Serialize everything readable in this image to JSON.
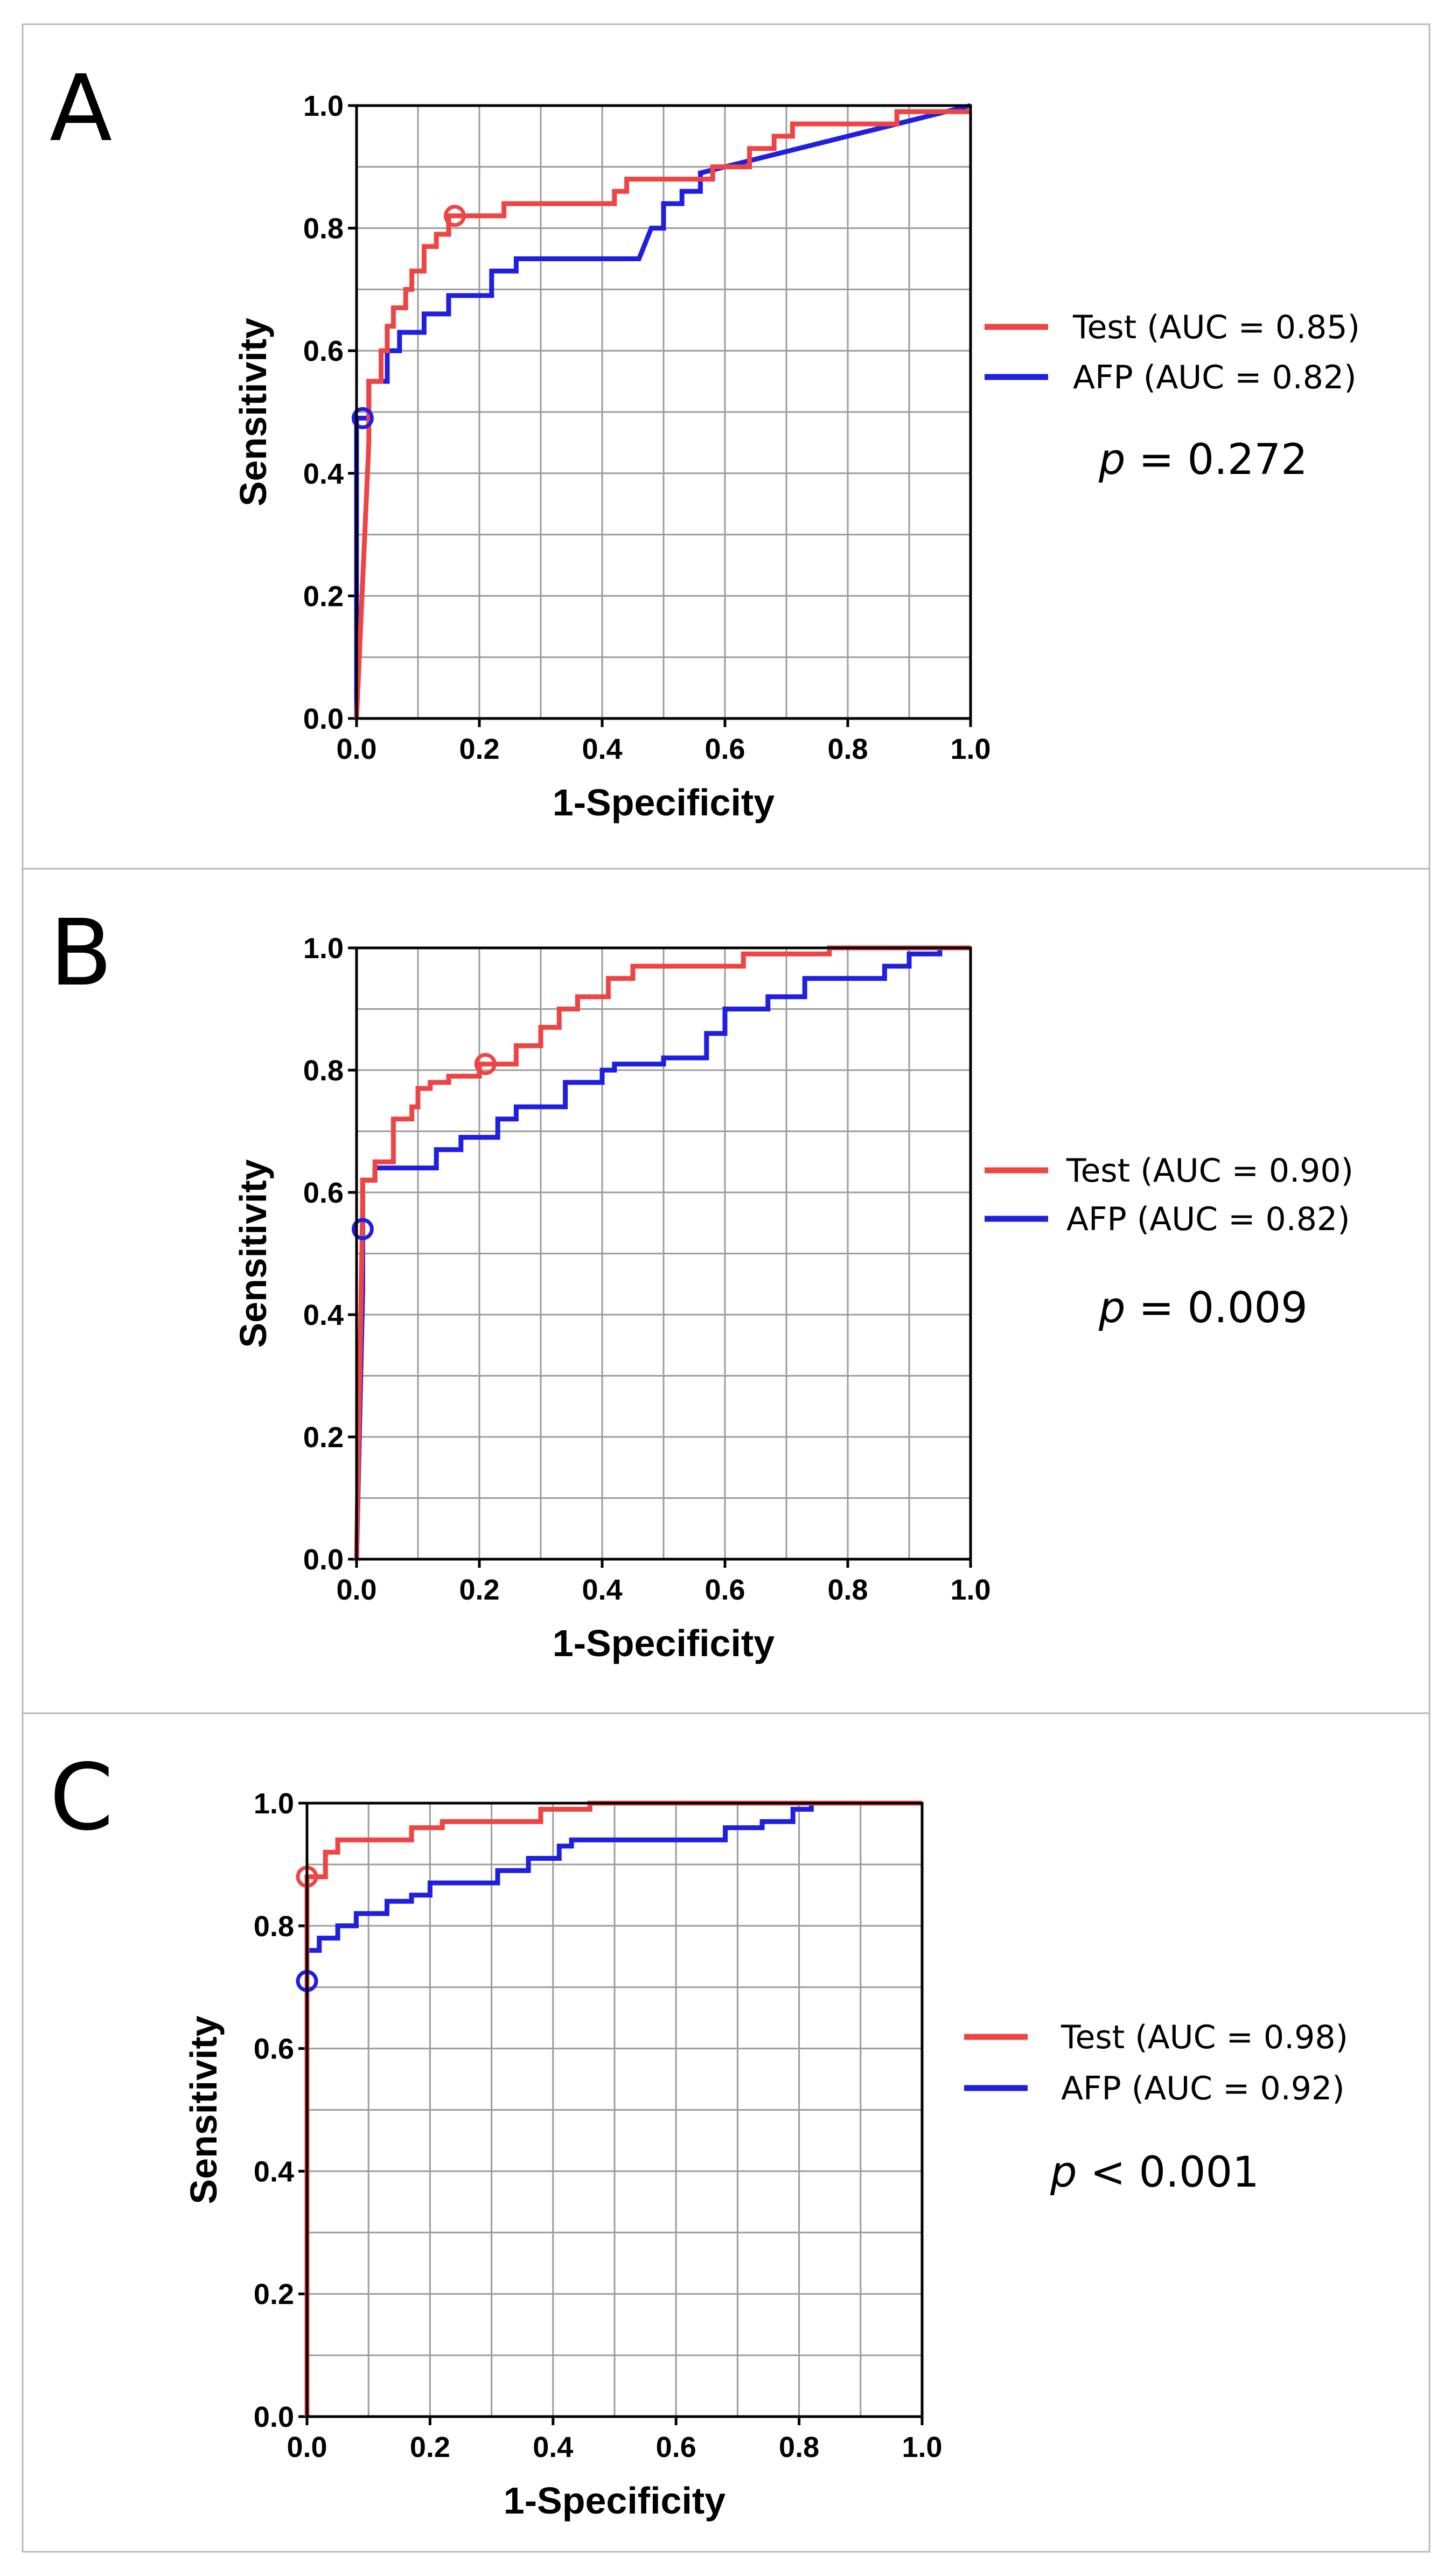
{
  "chart_data": [
    {
      "type": "line",
      "panel_label": "A",
      "xlabel": "1-Specificity",
      "ylabel": "Sensitivity",
      "xlim": [
        0,
        1
      ],
      "ylim": [
        0,
        1
      ],
      "x_ticks": [
        "0.0",
        "0.2",
        "0.4",
        "0.6",
        "0.8",
        "1.0"
      ],
      "y_ticks": [
        "0.0",
        "0.2",
        "0.4",
        "0.6",
        "0.8",
        "1.0"
      ],
      "grid": true,
      "legend_position": "right",
      "p_prefix": "p",
      "p_rest": " = 0.272",
      "series": [
        {
          "name": "Test",
          "legend_label": "Test (AUC = 0.85)",
          "color": "#ee4444",
          "cutoff": [
            0.16,
            0.82
          ],
          "points": [
            [
              0,
              0
            ],
            [
              0.02,
              0.45
            ],
            [
              0.02,
              0.55
            ],
            [
              0.04,
              0.55
            ],
            [
              0.04,
              0.6
            ],
            [
              0.05,
              0.6
            ],
            [
              0.05,
              0.64
            ],
            [
              0.06,
              0.64
            ],
            [
              0.06,
              0.67
            ],
            [
              0.08,
              0.67
            ],
            [
              0.08,
              0.7
            ],
            [
              0.09,
              0.7
            ],
            [
              0.09,
              0.73
            ],
            [
              0.11,
              0.73
            ],
            [
              0.11,
              0.77
            ],
            [
              0.13,
              0.77
            ],
            [
              0.13,
              0.79
            ],
            [
              0.15,
              0.79
            ],
            [
              0.15,
              0.82
            ],
            [
              0.24,
              0.82
            ],
            [
              0.24,
              0.84
            ],
            [
              0.42,
              0.84
            ],
            [
              0.42,
              0.86
            ],
            [
              0.44,
              0.86
            ],
            [
              0.44,
              0.88
            ],
            [
              0.58,
              0.88
            ],
            [
              0.58,
              0.9
            ],
            [
              0.64,
              0.9
            ],
            [
              0.64,
              0.93
            ],
            [
              0.68,
              0.93
            ],
            [
              0.68,
              0.95
            ],
            [
              0.71,
              0.95
            ],
            [
              0.71,
              0.97
            ],
            [
              0.88,
              0.97
            ],
            [
              0.88,
              0.99
            ],
            [
              1,
              0.99
            ]
          ]
        },
        {
          "name": "AFP",
          "legend_label": "AFP (AUC = 0.82)",
          "color": "#1f1fe0",
          "cutoff": [
            0.01,
            0.49
          ],
          "points": [
            [
              0,
              0
            ],
            [
              0,
              0.49
            ],
            [
              0.02,
              0.49
            ],
            [
              0.02,
              0.55
            ],
            [
              0.05,
              0.55
            ],
            [
              0.05,
              0.6
            ],
            [
              0.07,
              0.6
            ],
            [
              0.07,
              0.63
            ],
            [
              0.11,
              0.63
            ],
            [
              0.11,
              0.66
            ],
            [
              0.15,
              0.66
            ],
            [
              0.15,
              0.69
            ],
            [
              0.22,
              0.69
            ],
            [
              0.22,
              0.73
            ],
            [
              0.26,
              0.73
            ],
            [
              0.26,
              0.75
            ],
            [
              0.46,
              0.75
            ],
            [
              0.48,
              0.8
            ],
            [
              0.5,
              0.8
            ],
            [
              0.5,
              0.84
            ],
            [
              0.53,
              0.84
            ],
            [
              0.53,
              0.86
            ],
            [
              0.56,
              0.86
            ],
            [
              0.56,
              0.89
            ],
            [
              0.6,
              0.9
            ],
            [
              1,
              1
            ]
          ]
        }
      ]
    },
    {
      "type": "line",
      "panel_label": "B",
      "xlabel": "1-Specificity",
      "ylabel": "Sensitivity",
      "xlim": [
        0,
        1
      ],
      "ylim": [
        0,
        1
      ],
      "x_ticks": [
        "0.0",
        "0.2",
        "0.4",
        "0.6",
        "0.8",
        "1.0"
      ],
      "y_ticks": [
        "0.0",
        "0.2",
        "0.4",
        "0.6",
        "0.8",
        "1.0"
      ],
      "grid": true,
      "legend_position": "right",
      "p_prefix": "p",
      "p_rest": " = 0.009",
      "series": [
        {
          "name": "Test",
          "legend_label": "Test (AUC = 0.90)",
          "color": "#ee4444",
          "cutoff": [
            0.21,
            0.81
          ],
          "points": [
            [
              0,
              0
            ],
            [
              0.01,
              0.58
            ],
            [
              0.01,
              0.62
            ],
            [
              0.03,
              0.62
            ],
            [
              0.03,
              0.65
            ],
            [
              0.06,
              0.65
            ],
            [
              0.06,
              0.72
            ],
            [
              0.09,
              0.72
            ],
            [
              0.09,
              0.74
            ],
            [
              0.1,
              0.74
            ],
            [
              0.1,
              0.77
            ],
            [
              0.12,
              0.77
            ],
            [
              0.12,
              0.78
            ],
            [
              0.15,
              0.78
            ],
            [
              0.15,
              0.79
            ],
            [
              0.2,
              0.79
            ],
            [
              0.2,
              0.81
            ],
            [
              0.26,
              0.81
            ],
            [
              0.26,
              0.84
            ],
            [
              0.3,
              0.84
            ],
            [
              0.3,
              0.87
            ],
            [
              0.33,
              0.87
            ],
            [
              0.33,
              0.9
            ],
            [
              0.36,
              0.9
            ],
            [
              0.36,
              0.92
            ],
            [
              0.41,
              0.92
            ],
            [
              0.41,
              0.95
            ],
            [
              0.45,
              0.95
            ],
            [
              0.45,
              0.97
            ],
            [
              0.63,
              0.97
            ],
            [
              0.63,
              0.99
            ],
            [
              0.77,
              0.99
            ],
            [
              0.77,
              1
            ],
            [
              1,
              1
            ]
          ]
        },
        {
          "name": "AFP",
          "legend_label": "AFP (AUC = 0.82)",
          "color": "#1f1fe0",
          "cutoff": [
            0.01,
            0.54
          ],
          "points": [
            [
              0,
              0
            ],
            [
              0.01,
              0.44
            ],
            [
              0.01,
              0.62
            ],
            [
              0.03,
              0.62
            ],
            [
              0.03,
              0.64
            ],
            [
              0.13,
              0.64
            ],
            [
              0.13,
              0.67
            ],
            [
              0.17,
              0.67
            ],
            [
              0.17,
              0.69
            ],
            [
              0.23,
              0.69
            ],
            [
              0.23,
              0.72
            ],
            [
              0.26,
              0.72
            ],
            [
              0.26,
              0.74
            ],
            [
              0.34,
              0.74
            ],
            [
              0.34,
              0.78
            ],
            [
              0.4,
              0.78
            ],
            [
              0.4,
              0.8
            ],
            [
              0.42,
              0.8
            ],
            [
              0.42,
              0.81
            ],
            [
              0.5,
              0.81
            ],
            [
              0.5,
              0.82
            ],
            [
              0.57,
              0.82
            ],
            [
              0.57,
              0.86
            ],
            [
              0.6,
              0.86
            ],
            [
              0.6,
              0.9
            ],
            [
              0.67,
              0.9
            ],
            [
              0.67,
              0.92
            ],
            [
              0.73,
              0.92
            ],
            [
              0.73,
              0.95
            ],
            [
              0.86,
              0.95
            ],
            [
              0.86,
              0.97
            ],
            [
              0.9,
              0.97
            ],
            [
              0.9,
              0.99
            ],
            [
              0.95,
              0.99
            ],
            [
              0.95,
              1
            ],
            [
              1,
              1
            ]
          ]
        }
      ]
    },
    {
      "type": "line",
      "panel_label": "C",
      "xlabel": "1-Specificity",
      "ylabel": "Sensitivity",
      "xlim": [
        0,
        1
      ],
      "ylim": [
        0,
        1
      ],
      "x_ticks": [
        "0.0",
        "0.2",
        "0.4",
        "0.6",
        "0.8",
        "1.0"
      ],
      "y_ticks": [
        "0.0",
        "0.2",
        "0.4",
        "0.6",
        "0.8",
        "1.0"
      ],
      "grid": true,
      "legend_position": "right",
      "p_prefix": "p",
      "p_rest": " < 0.001",
      "series": [
        {
          "name": "Test",
          "legend_label": "Test (AUC = 0.98)",
          "color": "#ee4444",
          "cutoff": [
            0.0,
            0.88
          ],
          "points": [
            [
              0,
              0
            ],
            [
              0,
              0.88
            ],
            [
              0.03,
              0.88
            ],
            [
              0.03,
              0.92
            ],
            [
              0.05,
              0.92
            ],
            [
              0.05,
              0.94
            ],
            [
              0.17,
              0.94
            ],
            [
              0.17,
              0.96
            ],
            [
              0.22,
              0.96
            ],
            [
              0.22,
              0.97
            ],
            [
              0.38,
              0.97
            ],
            [
              0.38,
              0.99
            ],
            [
              0.46,
              0.99
            ],
            [
              0.46,
              1
            ],
            [
              1,
              1
            ]
          ]
        },
        {
          "name": "AFP",
          "legend_label": "AFP (AUC = 0.92)",
          "color": "#1f1fe0",
          "cutoff": [
            0.0,
            0.71
          ],
          "points": [
            [
              0,
              0
            ],
            [
              0,
              0.71
            ],
            [
              0,
              0.76
            ],
            [
              0.02,
              0.76
            ],
            [
              0.02,
              0.78
            ],
            [
              0.05,
              0.78
            ],
            [
              0.05,
              0.8
            ],
            [
              0.08,
              0.8
            ],
            [
              0.08,
              0.82
            ],
            [
              0.13,
              0.82
            ],
            [
              0.13,
              0.84
            ],
            [
              0.17,
              0.84
            ],
            [
              0.17,
              0.85
            ],
            [
              0.2,
              0.85
            ],
            [
              0.2,
              0.87
            ],
            [
              0.31,
              0.87
            ],
            [
              0.31,
              0.89
            ],
            [
              0.36,
              0.89
            ],
            [
              0.36,
              0.91
            ],
            [
              0.41,
              0.91
            ],
            [
              0.41,
              0.93
            ],
            [
              0.43,
              0.93
            ],
            [
              0.43,
              0.94
            ],
            [
              0.68,
              0.94
            ],
            [
              0.68,
              0.96
            ],
            [
              0.74,
              0.96
            ],
            [
              0.74,
              0.97
            ],
            [
              0.79,
              0.97
            ],
            [
              0.79,
              0.99
            ],
            [
              0.82,
              0.99
            ],
            [
              0.82,
              1
            ],
            [
              1,
              1
            ]
          ]
        }
      ]
    }
  ]
}
